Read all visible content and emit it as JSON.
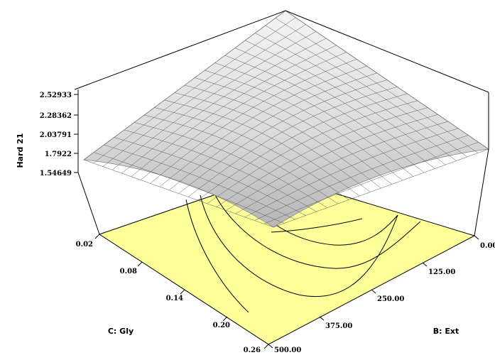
{
  "chart_data": {
    "type": "surface",
    "zlabel": "Hard 21",
    "ylabel": "C: Gly",
    "xlabel": "B: Ext",
    "z_ticks": [
      "2.52933",
      "2.28362",
      "2.03791",
      "1.7922",
      "1.54649"
    ],
    "y_ticks": [
      "0.02",
      "0.08",
      "0.14",
      "0.20",
      "0.26"
    ],
    "x_ticks": [
      "0.00",
      "125.00",
      "250.00",
      "375.00",
      "500.00"
    ],
    "x_range": [
      0,
      500
    ],
    "y_range": [
      0.02,
      0.26
    ],
    "z_range": [
      1.54649,
      2.52933
    ],
    "colors": {
      "contour_fill": "#ffff99",
      "surface_light": "#f2f2f2",
      "surface_dark": "#b8b8b8",
      "mesh": "#5a5a5a"
    }
  }
}
